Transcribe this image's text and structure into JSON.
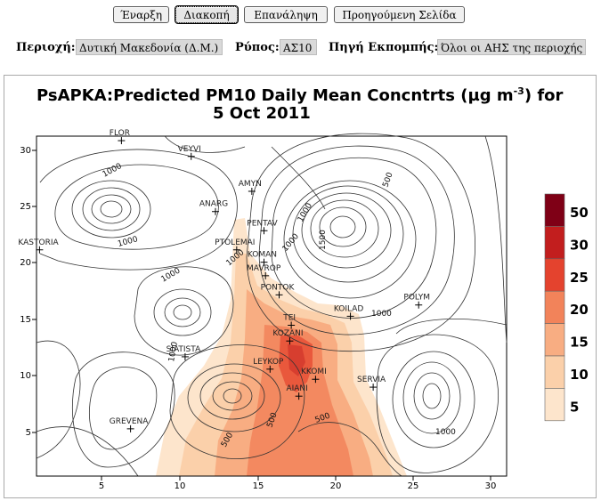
{
  "toolbar": {
    "start_label": "Έναρξη",
    "pause_label": "Διακοπή",
    "repeat_label": "Επανάληψη",
    "prev_page_label": "Προηγούμενη Σελίδα"
  },
  "filters": {
    "region_label": "Περιοχή:",
    "region_value": "Δυτική Μακεδονία (Δ.Μ.)",
    "pollutant_label": "Ρύπος:",
    "pollutant_value": "ΑΣ10",
    "source_label": "Πηγή Εκπομπής:",
    "source_value": "Όλοι οι ΑΗΣ της περιοχής"
  },
  "map": {
    "title_line1": "PsAPKA:Predicted PM10 Daily Mean Concntrts (µg m",
    "title_sup": "-3",
    "title_line1_end": ") for",
    "title_line2": "5 Oct 2011",
    "x_ticks": [
      "5",
      "10",
      "15",
      "20",
      "25",
      "30"
    ],
    "y_ticks": [
      "5",
      "10",
      "15",
      "20",
      "25",
      "30"
    ],
    "legend": {
      "labels": [
        "50",
        "30",
        "25",
        "20",
        "15",
        "10",
        "5"
      ],
      "colors": [
        "#7f0016",
        "#c21e1e",
        "#e4432e",
        "#f2835a",
        "#f8ad82",
        "#fbd0aa",
        "#fde5cc"
      ]
    },
    "towns": [
      {
        "name": "FLOR",
        "x": 5.6,
        "y": 29.8
      },
      {
        "name": "VEYVI",
        "x": 10.2,
        "y": 28.4
      },
      {
        "name": "AMYN",
        "x": 14.2,
        "y": 25.3
      },
      {
        "name": "ANARG",
        "x": 11.8,
        "y": 23.5
      },
      {
        "name": "KASTORIA",
        "x": 0.2,
        "y": 20.1
      },
      {
        "name": "PENTAV",
        "x": 15.0,
        "y": 21.8
      },
      {
        "name": "PTOLEMAI",
        "x": 13.2,
        "y": 20.1
      },
      {
        "name": "KOMAN",
        "x": 15.0,
        "y": 19.0
      },
      {
        "name": "MAVROP",
        "x": 15.1,
        "y": 17.8
      },
      {
        "name": "PONTOK",
        "x": 16.0,
        "y": 16.1
      },
      {
        "name": "KOILAD",
        "x": 20.7,
        "y": 14.2
      },
      {
        "name": "POLYM",
        "x": 25.2,
        "y": 15.2
      },
      {
        "name": "TEI",
        "x": 16.8,
        "y": 13.4
      },
      {
        "name": "KOZANI",
        "x": 16.7,
        "y": 12.0
      },
      {
        "name": "SIATISTA",
        "x": 9.8,
        "y": 10.6
      },
      {
        "name": "LEYKOP",
        "x": 15.4,
        "y": 9.5
      },
      {
        "name": "KKOMI",
        "x": 18.4,
        "y": 8.6
      },
      {
        "name": "SERVIA",
        "x": 22.2,
        "y": 7.9
      },
      {
        "name": "AIANI",
        "x": 17.3,
        "y": 7.1
      },
      {
        "name": "GREVENA",
        "x": 6.2,
        "y": 4.2
      }
    ],
    "contour_labels": [
      "1000",
      "1000",
      "1000",
      "1000",
      "1000",
      "1000",
      "1500",
      "500",
      "500",
      "500",
      "1000",
      "1000",
      "500",
      "1000"
    ]
  }
}
